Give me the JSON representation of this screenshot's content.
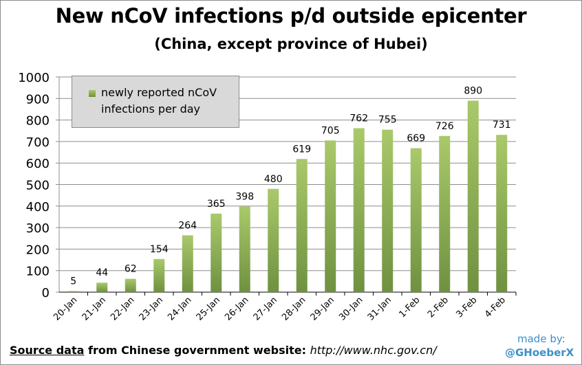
{
  "chart_data": {
    "type": "bar",
    "title": "New nCoV infections p/d outside epicenter",
    "subtitle": "(China, except province of Hubei)",
    "categories": [
      "20-Jan",
      "21-Jan",
      "22-Jan",
      "23-Jan",
      "24-Jan",
      "25-Jan",
      "26-Jan",
      "27-Jan",
      "28-Jan",
      "29-Jan",
      "30-Jan",
      "31-Jan",
      "1-Feb",
      "2-Feb",
      "3-Feb",
      "4-Feb"
    ],
    "values": [
      5,
      44,
      62,
      154,
      264,
      365,
      398,
      480,
      619,
      705,
      762,
      755,
      669,
      726,
      890,
      731
    ],
    "series_name": "newly reported nCoV infections per day",
    "ylim": [
      0,
      1000
    ],
    "yticks": [
      0,
      100,
      200,
      300,
      400,
      500,
      600,
      700,
      800,
      900,
      1000
    ],
    "grid": true,
    "legend_position": "top-left",
    "colors": {
      "bar_top": "#a9c96a",
      "bar_bottom": "#6f9140",
      "grid": "#8c8c8c"
    }
  },
  "footer": {
    "source_link": "Source data",
    "middle": " from Chinese government website: ",
    "url": "http://www.nhc.gov.cn/"
  },
  "credit": {
    "made_by": "made by:",
    "handle": "@GHoeberX"
  }
}
